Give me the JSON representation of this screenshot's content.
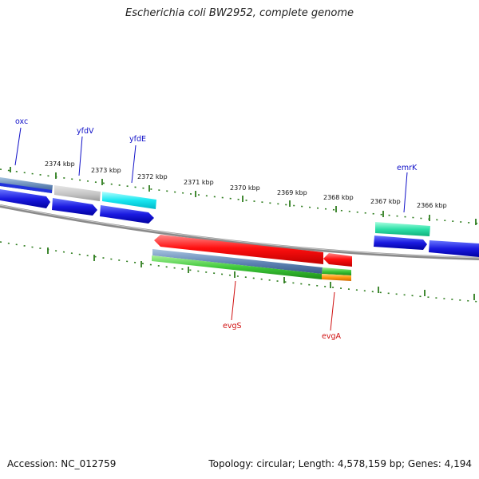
{
  "title": "Escherichia coli BW2952, complete genome",
  "accession": "Accession: NC_012759",
  "topology": "Topology: circular; Length: 4,578,159 bp; Genes: 4,194",
  "ruler_labels": [
    "2374 kbp",
    "2373 kbp",
    "2372 kbp",
    "2371 kbp",
    "2370 kbp",
    "2369 kbp",
    "2368 kbp",
    "2367 kbp",
    "2366 kbp"
  ],
  "gene_labels": {
    "oxc": "oxc",
    "yfdV": "yfdV",
    "yfdE": "yfdE",
    "emrK": "emrK",
    "evgS": "evgS",
    "evgA": "evgA"
  },
  "colors": {
    "label_forward": "#1010c8",
    "label_reverse": "#d01010",
    "backbone": "#777777",
    "tick": "#2e7d1e"
  }
}
